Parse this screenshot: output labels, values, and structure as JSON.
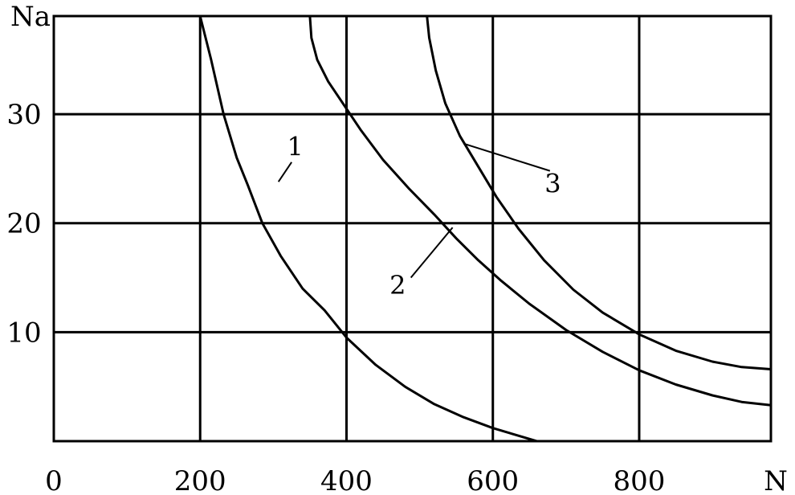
{
  "chart_data": {
    "type": "line",
    "xlabel": "N",
    "ylabel": "Na",
    "xlim": [
      0,
      980
    ],
    "ylim": [
      0,
      39
    ],
    "grid": true,
    "x_ticks": [
      {
        "value": 0,
        "label": "0"
      },
      {
        "value": 200,
        "label": "200"
      },
      {
        "value": 400,
        "label": "400"
      },
      {
        "value": 600,
        "label": "600"
      },
      {
        "value": 800,
        "label": "800"
      }
    ],
    "y_ticks": [
      {
        "value": 10,
        "label": "10"
      },
      {
        "value": 20,
        "label": "20"
      },
      {
        "value": 30,
        "label": "30"
      }
    ],
    "x_grid": [
      200,
      400,
      600,
      800,
      980
    ],
    "y_grid": [
      10,
      20,
      30,
      39
    ],
    "series": [
      {
        "label": "1",
        "color": "#000000",
        "label_pos": [
          330,
          26.2
        ],
        "leader_from": [
          307,
          23.8
        ],
        "leader_to": [
          325,
          25.6
        ],
        "points": [
          [
            200,
            39
          ],
          [
            215,
            35
          ],
          [
            232,
            30
          ],
          [
            250,
            26
          ],
          [
            265,
            23.5
          ],
          [
            285,
            20
          ],
          [
            310,
            17
          ],
          [
            340,
            14
          ],
          [
            370,
            12
          ],
          [
            400,
            9.5
          ],
          [
            440,
            7
          ],
          [
            480,
            5
          ],
          [
            520,
            3.4
          ],
          [
            560,
            2.2
          ],
          [
            600,
            1.2
          ],
          [
            640,
            0.4
          ],
          [
            660,
            0
          ]
        ]
      },
      {
        "label": "2",
        "color": "#000000",
        "label_pos": [
          470,
          13.5
        ],
        "leader_from": [
          488,
          15
        ],
        "leader_to": [
          545,
          19.6
        ],
        "points": [
          [
            350,
            39
          ],
          [
            352,
            37
          ],
          [
            360,
            35
          ],
          [
            375,
            33
          ],
          [
            395,
            31
          ],
          [
            420,
            28.5
          ],
          [
            450,
            25.8
          ],
          [
            485,
            23.2
          ],
          [
            520,
            20.8
          ],
          [
            550,
            18.6
          ],
          [
            580,
            16.6
          ],
          [
            610,
            14.8
          ],
          [
            650,
            12.6
          ],
          [
            700,
            10.2
          ],
          [
            750,
            8.2
          ],
          [
            800,
            6.5
          ],
          [
            850,
            5.2
          ],
          [
            900,
            4.2
          ],
          [
            940,
            3.6
          ],
          [
            980,
            3.3
          ]
        ]
      },
      {
        "label": "3",
        "color": "#000000",
        "label_pos": [
          682,
          22.8
        ],
        "leader_from": [
          678,
          24.8
        ],
        "leader_to": [
          560,
          27.3
        ],
        "points": [
          [
            510,
            39
          ],
          [
            513,
            37
          ],
          [
            522,
            34
          ],
          [
            535,
            31
          ],
          [
            555,
            28
          ],
          [
            580,
            25.2
          ],
          [
            605,
            22.4
          ],
          [
            635,
            19.5
          ],
          [
            670,
            16.6
          ],
          [
            710,
            13.9
          ],
          [
            750,
            11.8
          ],
          [
            800,
            9.8
          ],
          [
            850,
            8.3
          ],
          [
            900,
            7.3
          ],
          [
            940,
            6.8
          ],
          [
            980,
            6.6
          ]
        ]
      }
    ]
  }
}
